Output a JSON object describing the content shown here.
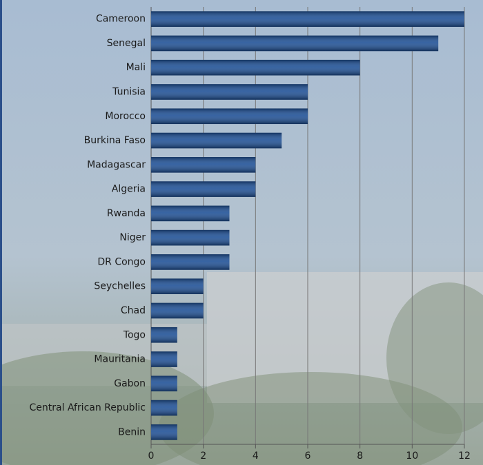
{
  "chart_data": {
    "type": "bar",
    "orientation": "horizontal",
    "categories": [
      "Cameroon",
      "Senegal",
      "Mali",
      "Tunisia",
      "Morocco",
      "Burkina Faso",
      "Madagascar",
      "Algeria",
      "Rwanda",
      "Niger",
      "DR Congo",
      "Seychelles",
      "Chad",
      "Togo",
      "Mauritania",
      "Gabon",
      "Central African Republic",
      "Benin"
    ],
    "values": [
      12,
      11,
      8,
      6,
      6,
      5,
      4,
      4,
      3,
      3,
      3,
      2,
      2,
      1,
      1,
      1,
      1,
      1
    ],
    "color": "#1d4f95",
    "xlim": [
      0,
      12
    ],
    "xticks": [
      0,
      2,
      4,
      6,
      8,
      10,
      12
    ],
    "grid": true
  }
}
